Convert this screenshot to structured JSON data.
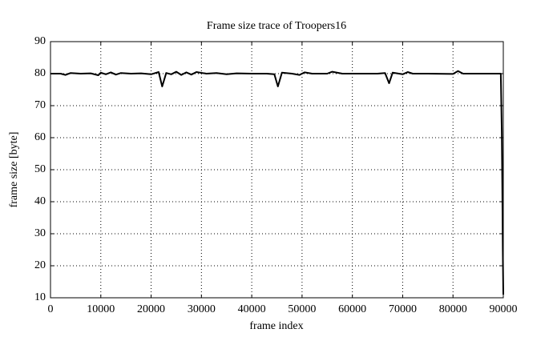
{
  "chart_data": {
    "type": "line",
    "title": "Frame size trace of Troopers16",
    "xlabel": "frame index",
    "ylabel": "frame size [byte]",
    "x": [
      0,
      2000,
      3000,
      4000,
      6000,
      8000,
      9500,
      10000,
      11000,
      12000,
      13000,
      14000,
      16000,
      18000,
      20000,
      21500,
      22200,
      23000,
      24000,
      25000,
      26000,
      27000,
      28000,
      29000,
      31000,
      33000,
      35000,
      37000,
      40000,
      43000,
      44500,
      45200,
      46000,
      48000,
      49500,
      50500,
      52000,
      55000,
      56000,
      58000,
      60000,
      62000,
      65000,
      66500,
      67300,
      68000,
      70000,
      71000,
      72000,
      75000,
      80000,
      81000,
      82000,
      85000,
      88000,
      89000,
      89500,
      89700,
      89800,
      89900,
      90000
    ],
    "values": [
      80,
      80,
      79.6,
      80.2,
      80,
      80.1,
      79.5,
      80.3,
      79.8,
      80.4,
      79.7,
      80.2,
      80,
      80.1,
      79.8,
      80.5,
      76,
      80.2,
      79.8,
      80.6,
      79.6,
      80.4,
      79.7,
      80.5,
      80,
      80.2,
      79.8,
      80.1,
      80,
      80,
      79.8,
      76,
      80.3,
      80,
      79.6,
      80.4,
      80,
      80,
      80.6,
      80,
      80,
      80,
      80,
      80.2,
      77,
      80.3,
      79.8,
      80.5,
      80,
      80,
      79.9,
      80.8,
      80,
      80,
      80,
      80,
      80,
      62,
      45,
      25,
      11
    ],
    "color": "#000000",
    "xlim": [
      0,
      90000
    ],
    "ylim": [
      10,
      90
    ],
    "xticks": [
      0,
      10000,
      20000,
      30000,
      40000,
      50000,
      60000,
      70000,
      80000,
      90000
    ],
    "yticks": [
      10,
      20,
      30,
      40,
      50,
      60,
      70,
      80,
      90
    ],
    "grid": true
  }
}
